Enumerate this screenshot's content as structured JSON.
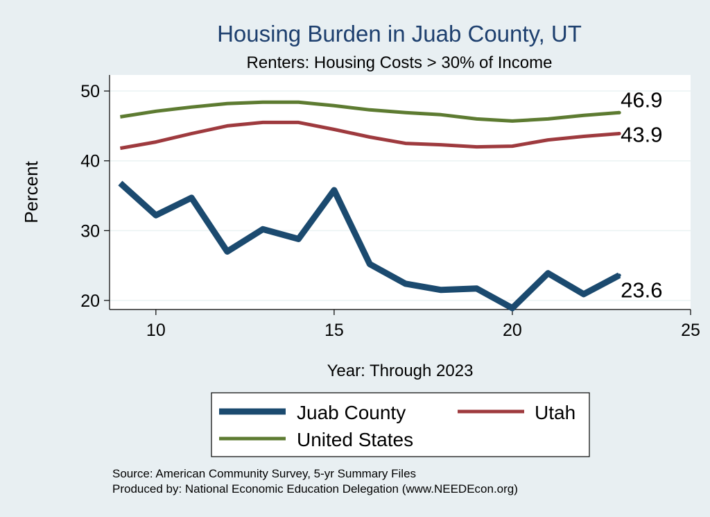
{
  "chart_data": {
    "type": "line",
    "title": "Housing Burden in Juab County, UT",
    "subtitle": "Renters: Housing Costs > 30% of Income",
    "xlabel": "Year: Through 2023",
    "ylabel": "Percent",
    "xlim": [
      8.7,
      25
    ],
    "ylim": [
      18.7,
      52.3
    ],
    "xticks": [
      10,
      15,
      20,
      25
    ],
    "yticks": [
      20,
      30,
      40,
      50
    ],
    "grid": true,
    "legend_position": "bottom",
    "x": [
      9,
      10,
      11,
      12,
      13,
      14,
      15,
      16,
      17,
      18,
      19,
      20,
      21,
      22,
      23
    ],
    "series": [
      {
        "name": "Juab County",
        "color": "#1b4a6f",
        "values": [
          36.8,
          32.2,
          34.7,
          27.0,
          30.2,
          28.8,
          35.8,
          25.2,
          22.4,
          21.5,
          21.7,
          18.9,
          23.9,
          20.9,
          23.6
        ],
        "end_label": "23.6"
      },
      {
        "name": "Utah",
        "color": "#9e3a3e",
        "values": [
          41.8,
          42.7,
          43.9,
          45.0,
          45.5,
          45.5,
          44.5,
          43.4,
          42.5,
          42.3,
          42.0,
          42.1,
          43.0,
          43.5,
          43.9
        ],
        "end_label": "43.9"
      },
      {
        "name": "United States",
        "color": "#5d7b31",
        "values": [
          46.3,
          47.1,
          47.7,
          48.2,
          48.4,
          48.4,
          47.9,
          47.3,
          46.9,
          46.6,
          46.0,
          45.7,
          46.0,
          46.5,
          46.9
        ],
        "end_label": "46.9"
      }
    ]
  },
  "footer": {
    "source": "Source: American Community Survey, 5-yr Summary Files",
    "produced_by": "Produced by: National Economic Education Delegation (www.NEEDEcon.org)"
  }
}
